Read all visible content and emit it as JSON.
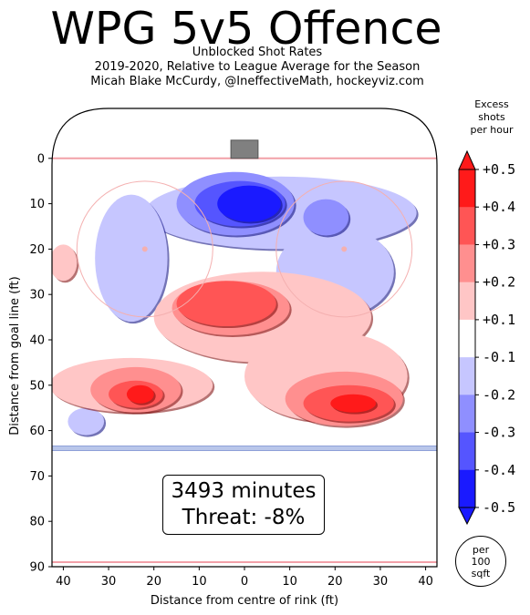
{
  "chart_data": {
    "type": "heatmap",
    "title": "WPG 5v5 Offence",
    "subtitle_lines": [
      "Unblocked Shot Rates",
      "2019-2020, Relative to League Average for the Season",
      "Micah Blake McCurdy, @IneffectiveMath, hockeyviz.com"
    ],
    "xlabel": "Distance from centre of rink (ft)",
    "ylabel": "Distance from goal line (ft)",
    "x_ticks": [
      "40",
      "30",
      "20",
      "10",
      "0",
      "10",
      "20",
      "30",
      "40"
    ],
    "y_ticks": [
      "0",
      "10",
      "20",
      "30",
      "40",
      "50",
      "60",
      "70",
      "80",
      "90"
    ],
    "xlim": [
      -42.5,
      42.5
    ],
    "ylim": [
      90,
      -11
    ],
    "colorbar": {
      "title_lines": [
        "Excess",
        "shots",
        "per hour"
      ],
      "ticks": [
        "+0.5",
        "+0.4",
        "+0.3",
        "+0.2",
        "+0.1",
        "-0.1",
        "-0.2",
        "-0.3",
        "-0.4",
        "-0.5"
      ],
      "levels": [
        0.5,
        0.4,
        0.3,
        0.2,
        0.1,
        -0.1,
        -0.2,
        -0.3,
        -0.4,
        -0.5
      ],
      "colors": [
        "#ff1a1a",
        "#ff5555",
        "#ff8f8f",
        "#ffc6c6",
        "#ffffff",
        "#c6c6ff",
        "#8f8fff",
        "#5555ff",
        "#1a1aff"
      ],
      "units_lines": [
        "per",
        "100",
        "sqft"
      ]
    },
    "annotation": {
      "minutes": "3493 minutes",
      "threat": "Threat: -8%"
    },
    "regions": [
      {
        "level": -0.1,
        "cx": 8,
        "cy": 12,
        "rx": 30,
        "ry": 8
      },
      {
        "level": -0.1,
        "cx": -25,
        "cy": 22,
        "rx": 8,
        "ry": 14
      },
      {
        "level": -0.1,
        "cx": 20,
        "cy": 25,
        "rx": 13,
        "ry": 10
      },
      {
        "level": -0.2,
        "cx": -2,
        "cy": 10,
        "rx": 13,
        "ry": 7
      },
      {
        "level": -0.2,
        "cx": 18,
        "cy": 13,
        "rx": 5,
        "ry": 4
      },
      {
        "level": -0.3,
        "cx": -1,
        "cy": 10,
        "rx": 10,
        "ry": 5
      },
      {
        "level": -0.4,
        "cx": 1,
        "cy": 10,
        "rx": 7,
        "ry": 4
      },
      {
        "level": -0.1,
        "cx": -35,
        "cy": 58,
        "rx": 4,
        "ry": 3
      },
      {
        "level": 0.1,
        "cx": -40,
        "cy": 23,
        "rx": 3,
        "ry": 4
      },
      {
        "level": 0.1,
        "cx": 4,
        "cy": 35,
        "rx": 24,
        "ry": 10
      },
      {
        "level": 0.1,
        "cx": 18,
        "cy": 48,
        "rx": 18,
        "ry": 10
      },
      {
        "level": 0.1,
        "cx": -25,
        "cy": 50,
        "rx": 18,
        "ry": 6
      },
      {
        "level": 0.2,
        "cx": -3,
        "cy": 33,
        "rx": 13,
        "ry": 6
      },
      {
        "level": 0.2,
        "cx": -24,
        "cy": 51,
        "rx": 10,
        "ry": 5
      },
      {
        "level": 0.2,
        "cx": 22,
        "cy": 53,
        "rx": 13,
        "ry": 6
      },
      {
        "level": 0.3,
        "cx": -4,
        "cy": 32,
        "rx": 11,
        "ry": 5
      },
      {
        "level": 0.3,
        "cx": -24,
        "cy": 52,
        "rx": 6,
        "ry": 3
      },
      {
        "level": 0.3,
        "cx": 23,
        "cy": 54,
        "rx": 10,
        "ry": 4
      },
      {
        "level": 0.4,
        "cx": -23,
        "cy": 52,
        "rx": 3,
        "ry": 2
      },
      {
        "level": 0.4,
        "cx": 24,
        "cy": 54,
        "rx": 5,
        "ry": 2
      }
    ]
  }
}
